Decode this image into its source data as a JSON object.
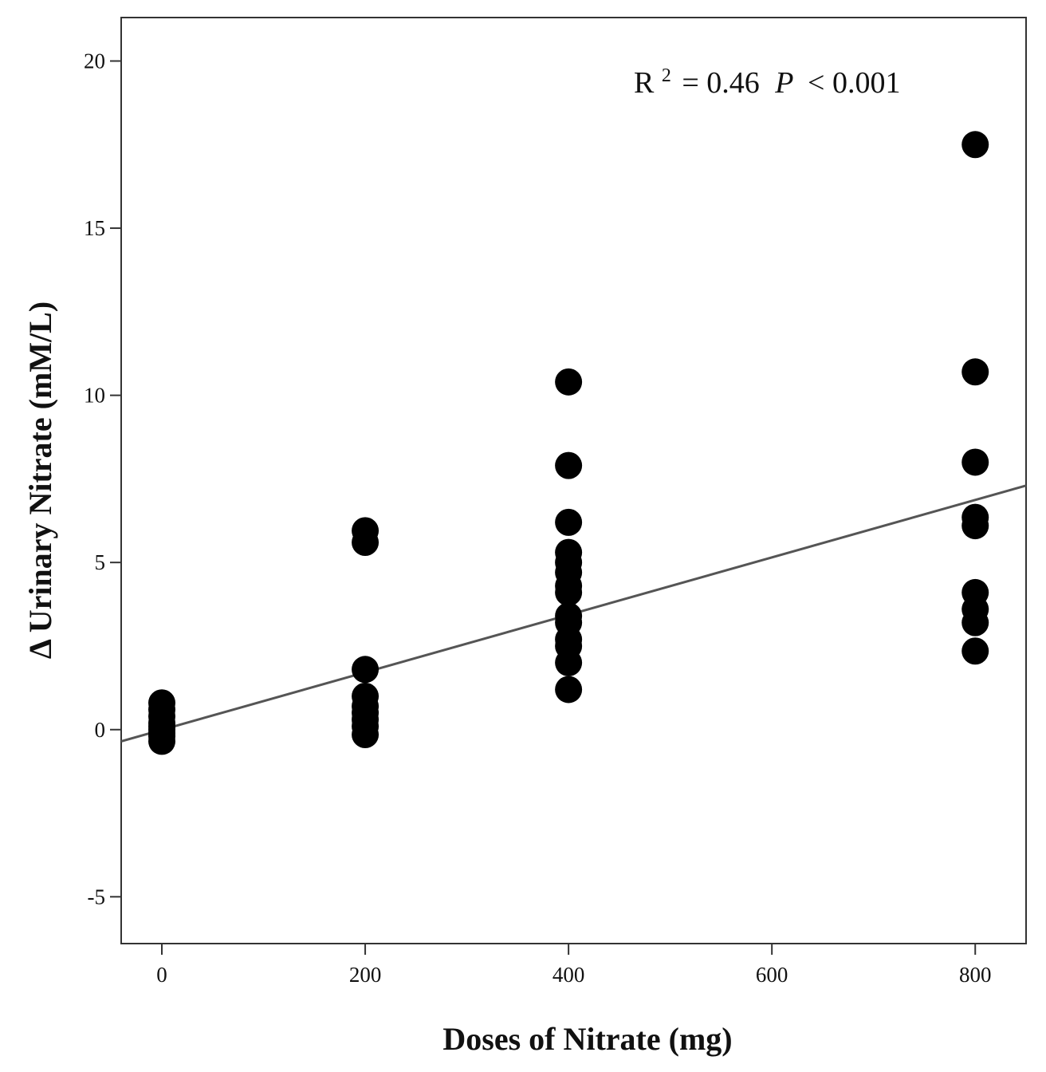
{
  "chart_data": {
    "type": "scatter",
    "title": "",
    "xlabel": "Doses of Nitrate (mg)",
    "ylabel": "Δ Urinary Nitrate (mM/L)",
    "xlim": [
      -40,
      850
    ],
    "ylim": [
      -6.4,
      21.3
    ],
    "xticks": [
      0,
      200,
      400,
      600,
      800
    ],
    "yticks": [
      -5,
      0,
      5,
      10,
      15,
      20
    ],
    "grid": false,
    "annotation": {
      "r_label": "R",
      "r_exponent": "2",
      "r_value": "= 0.46",
      "p_label": "P",
      "p_value": "< 0.001"
    },
    "points": [
      {
        "x": 0,
        "y": 0.8
      },
      {
        "x": 0,
        "y": 0.6
      },
      {
        "x": 0,
        "y": 0.4
      },
      {
        "x": 0,
        "y": 0.2
      },
      {
        "x": 0,
        "y": 0.1
      },
      {
        "x": 0,
        "y": 0.0
      },
      {
        "x": 0,
        "y": -0.1
      },
      {
        "x": 0,
        "y": -0.2
      },
      {
        "x": 0,
        "y": -0.35
      },
      {
        "x": 200,
        "y": 5.95
      },
      {
        "x": 200,
        "y": 5.6
      },
      {
        "x": 200,
        "y": 1.8
      },
      {
        "x": 200,
        "y": 1.0
      },
      {
        "x": 200,
        "y": 0.7
      },
      {
        "x": 200,
        "y": 0.5
      },
      {
        "x": 200,
        "y": 0.3
      },
      {
        "x": 200,
        "y": 0.1
      },
      {
        "x": 200,
        "y": -0.15
      },
      {
        "x": 400,
        "y": 10.4
      },
      {
        "x": 400,
        "y": 7.9
      },
      {
        "x": 400,
        "y": 6.2
      },
      {
        "x": 400,
        "y": 5.3
      },
      {
        "x": 400,
        "y": 5.0
      },
      {
        "x": 400,
        "y": 4.7
      },
      {
        "x": 400,
        "y": 4.3
      },
      {
        "x": 400,
        "y": 4.1
      },
      {
        "x": 400,
        "y": 3.4
      },
      {
        "x": 400,
        "y": 3.2
      },
      {
        "x": 400,
        "y": 2.7
      },
      {
        "x": 400,
        "y": 2.5
      },
      {
        "x": 400,
        "y": 2.0
      },
      {
        "x": 400,
        "y": 1.2
      },
      {
        "x": 800,
        "y": 17.5
      },
      {
        "x": 800,
        "y": 10.7
      },
      {
        "x": 800,
        "y": 8.0
      },
      {
        "x": 800,
        "y": 6.35
      },
      {
        "x": 800,
        "y": 6.1
      },
      {
        "x": 800,
        "y": 4.1
      },
      {
        "x": 800,
        "y": 3.6
      },
      {
        "x": 800,
        "y": 3.2
      },
      {
        "x": 800,
        "y": 2.35
      }
    ],
    "regression_line": {
      "x": [
        -40,
        850
      ],
      "y": [
        -0.35,
        7.3
      ]
    },
    "marker_color": "#000000",
    "line_color": "#555555"
  }
}
